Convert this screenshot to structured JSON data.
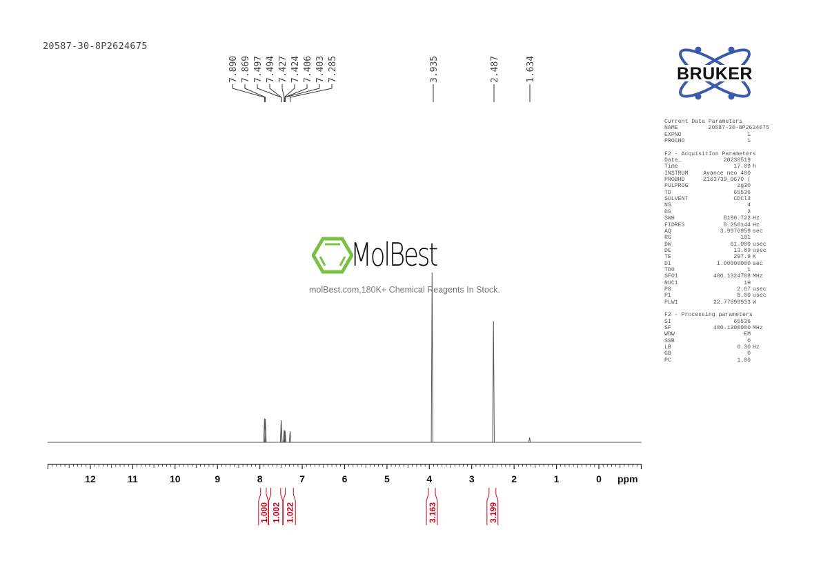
{
  "header": {
    "sample_name": "20587-30-8P2624675"
  },
  "logo": {
    "brand": "BRUKER",
    "color": "#3a5ca8",
    "text_color": "#111111"
  },
  "watermark": {
    "name": "MolBest",
    "tagline": "molBest.com,180K+ Chemical Reagents In Stock.",
    "color": "#7ac143"
  },
  "parameters": [
    {
      "title": "Current Data Parameters",
      "rows": [
        [
          "NAME",
          "20587-30-8P2624675",
          ""
        ],
        [
          "EXPNO",
          "1",
          ""
        ],
        [
          "PROCNO",
          "1",
          ""
        ]
      ]
    },
    {
      "title": "F2 - Acquisition Parameters",
      "rows": [
        [
          "Date_",
          "20230519",
          ""
        ],
        [
          "Time",
          "17.09",
          "h"
        ],
        [
          "INSTRUM",
          "Avance neo 400",
          ""
        ],
        [
          "PROBHD",
          "Z163739_0670 (",
          ""
        ],
        [
          "PULPROG",
          "zg30",
          ""
        ],
        [
          "TD",
          "65536",
          ""
        ],
        [
          "SOLVENT",
          "CDCl3",
          ""
        ],
        [
          "NS",
          "4",
          ""
        ],
        [
          "DS",
          "2",
          ""
        ],
        [
          "SWH",
          "8196.722",
          "Hz"
        ],
        [
          "FIDRES",
          "0.250144",
          "Hz"
        ],
        [
          "AQ",
          "3.9976959",
          "sec"
        ],
        [
          "RG",
          "101",
          ""
        ],
        [
          "DW",
          "61.000",
          "usec"
        ],
        [
          "DE",
          "13.89",
          "usec"
        ],
        [
          "TE",
          "297.9",
          "K"
        ],
        [
          "D1",
          "1.00000000",
          "sec"
        ],
        [
          "TD0",
          "1",
          ""
        ],
        [
          "SFO1",
          "400.1324708",
          "MHz"
        ],
        [
          "NUC1",
          "1H",
          ""
        ],
        [
          "P0",
          "2.67",
          "usec"
        ],
        [
          "P1",
          "8.00",
          "usec"
        ],
        [
          "PLW1",
          "22.77899933",
          "W"
        ]
      ]
    },
    {
      "title": "F2 - Processing parameters",
      "rows": [
        [
          "SI",
          "65536",
          ""
        ],
        [
          "SF",
          "400.1300000",
          "MHz"
        ],
        [
          "WDW",
          "EM",
          ""
        ],
        [
          "SSB",
          "0",
          ""
        ],
        [
          "LB",
          "0.30",
          "Hz"
        ],
        [
          "GB",
          "0",
          ""
        ],
        [
          "PC",
          "1.00",
          ""
        ]
      ]
    }
  ],
  "chart_data": {
    "type": "line",
    "title": "20587-30-8P2624675",
    "xlabel": "ppm",
    "ylabel": "",
    "xlim": [
      13,
      -1
    ],
    "x_reversed": true,
    "x_ticks": [
      "12",
      "11",
      "10",
      "9",
      "8",
      "7",
      "6",
      "5",
      "4",
      "3",
      "2",
      "1",
      "0"
    ],
    "grid": false,
    "line_color": "#555555",
    "integral_color": "#d0021b",
    "peak_labels": [
      "7.890",
      "7.869",
      "7.497",
      "7.494",
      "7.427",
      "7.424",
      "7.406",
      "7.403",
      "7.285",
      "3.935",
      "2.487",
      "1.634"
    ],
    "peaks": [
      {
        "ppm": 7.89,
        "intensity": 0.14
      },
      {
        "ppm": 7.869,
        "intensity": 0.138
      },
      {
        "ppm": 7.497,
        "intensity": 0.13
      },
      {
        "ppm": 7.494,
        "intensity": 0.12
      },
      {
        "ppm": 7.427,
        "intensity": 0.072
      },
      {
        "ppm": 7.424,
        "intensity": 0.07
      },
      {
        "ppm": 7.406,
        "intensity": 0.068
      },
      {
        "ppm": 7.403,
        "intensity": 0.066
      },
      {
        "ppm": 7.285,
        "intensity": 0.065
      },
      {
        "ppm": 3.935,
        "intensity": 1.0
      },
      {
        "ppm": 2.487,
        "intensity": 0.715
      },
      {
        "ppm": 1.634,
        "intensity": 0.028
      }
    ],
    "integrals": [
      {
        "range": [
          8.03,
          7.8
        ],
        "value": "1.000"
      },
      {
        "range": [
          7.79,
          7.46
        ],
        "value": "1.002"
      },
      {
        "range": [
          7.45,
          7.16
        ],
        "value": "1.022"
      },
      {
        "range": [
          4.07,
          3.81
        ],
        "value": "3.163"
      },
      {
        "range": [
          2.64,
          2.38
        ],
        "value": "3.199"
      }
    ]
  }
}
